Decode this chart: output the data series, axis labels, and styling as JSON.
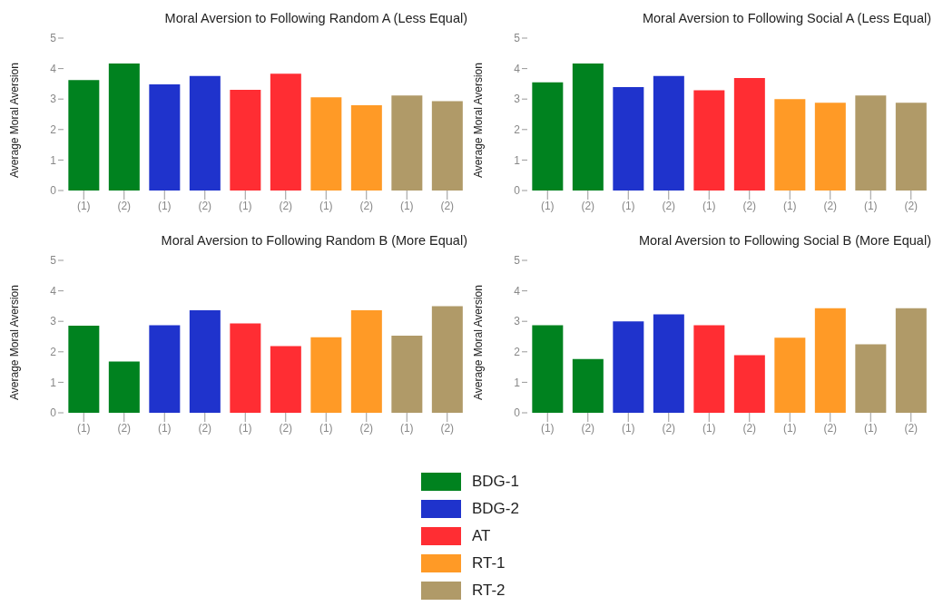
{
  "chart_data": [
    {
      "type": "bar",
      "title": "Moral Aversion to Following Random A (Less Equal)",
      "ylabel": "Average Moral Aversion",
      "categories": [
        "(1)",
        "(2)",
        "(1)",
        "(2)",
        "(1)",
        "(2)",
        "(1)",
        "(2)",
        "(1)",
        "(2)"
      ],
      "series": [
        {
          "name": "BDG-1",
          "color": "#00821f",
          "values": [
            3.62,
            4.17,
            null,
            null,
            null,
            null,
            null,
            null,
            null,
            null
          ]
        },
        {
          "name": "BDG-2",
          "color": "#1f33cc",
          "values": [
            null,
            null,
            3.48,
            3.76,
            null,
            null,
            null,
            null,
            null,
            null
          ]
        },
        {
          "name": "AT",
          "color": "#ff2d33",
          "values": [
            null,
            null,
            null,
            null,
            3.3,
            3.83,
            null,
            null,
            null,
            null
          ]
        },
        {
          "name": "RT-1",
          "color": "#ff9a26",
          "values": [
            null,
            null,
            null,
            null,
            null,
            null,
            3.06,
            2.8,
            null,
            null
          ]
        },
        {
          "name": "RT-2",
          "color": "#b09a68",
          "values": [
            null,
            null,
            null,
            null,
            null,
            null,
            null,
            null,
            3.12,
            2.93
          ]
        }
      ],
      "ylim": [
        0,
        5
      ],
      "yticks": [
        0,
        1,
        2,
        3,
        4,
        5
      ],
      "grid": false,
      "legend": "bottom"
    },
    {
      "type": "bar",
      "title": "Moral Aversion to Following Social A (Less Equal)",
      "ylabel": "Average Moral Aversion",
      "categories": [
        "(1)",
        "(2)",
        "(1)",
        "(2)",
        "(1)",
        "(2)",
        "(1)",
        "(2)",
        "(1)",
        "(2)"
      ],
      "series": [
        {
          "color": "#00821f",
          "values": [
            3.55,
            4.17,
            null,
            null,
            null,
            null,
            null,
            null,
            null,
            null
          ]
        },
        {
          "color": "#1f33cc",
          "values": [
            null,
            null,
            3.39,
            3.76,
            null,
            null,
            null,
            null,
            null,
            null
          ]
        },
        {
          "color": "#ff2d33",
          "values": [
            null,
            null,
            null,
            null,
            3.29,
            3.69,
            null,
            null,
            null,
            null
          ]
        },
        {
          "color": "#ff9a26",
          "values": [
            null,
            null,
            null,
            null,
            null,
            null,
            3.0,
            2.88,
            null,
            null
          ]
        },
        {
          "color": "#b09a68",
          "values": [
            null,
            null,
            null,
            null,
            null,
            null,
            null,
            null,
            3.12,
            2.88
          ]
        }
      ],
      "ylim": [
        0,
        5
      ],
      "yticks": [
        0,
        1,
        2,
        3,
        4,
        5
      ],
      "grid": false
    },
    {
      "type": "bar",
      "title": "Moral Aversion to Following Random B (More Equal)",
      "ylabel": "Average Moral Aversion",
      "categories": [
        "(1)",
        "(2)",
        "(1)",
        "(2)",
        "(1)",
        "(2)",
        "(1)",
        "(2)",
        "(1)",
        "(2)"
      ],
      "series": [
        {
          "color": "#00821f",
          "values": [
            2.86,
            1.68,
            null,
            null,
            null,
            null,
            null,
            null,
            null,
            null
          ]
        },
        {
          "color": "#1f33cc",
          "values": [
            null,
            null,
            2.87,
            3.36,
            null,
            null,
            null,
            null,
            null,
            null
          ]
        },
        {
          "color": "#ff2d33",
          "values": [
            null,
            null,
            null,
            null,
            2.93,
            2.19,
            null,
            null,
            null,
            null
          ]
        },
        {
          "color": "#ff9a26",
          "values": [
            null,
            null,
            null,
            null,
            null,
            null,
            2.48,
            3.36,
            null,
            null
          ]
        },
        {
          "color": "#b09a68",
          "values": [
            null,
            null,
            null,
            null,
            null,
            null,
            null,
            null,
            2.53,
            3.5
          ]
        }
      ],
      "ylim": [
        0,
        5
      ],
      "yticks": [
        0,
        1,
        2,
        3,
        4,
        5
      ],
      "grid": false
    },
    {
      "type": "bar",
      "title": "Moral Aversion to Following Social B (More Equal)",
      "ylabel": "Average Moral Aversion",
      "categories": [
        "(1)",
        "(2)",
        "(1)",
        "(2)",
        "(1)",
        "(2)",
        "(1)",
        "(2)",
        "(1)",
        "(2)"
      ],
      "series": [
        {
          "color": "#00821f",
          "values": [
            2.87,
            1.76,
            null,
            null,
            null,
            null,
            null,
            null,
            null,
            null
          ]
        },
        {
          "color": "#1f33cc",
          "values": [
            null,
            null,
            3.0,
            3.23,
            null,
            null,
            null,
            null,
            null,
            null
          ]
        },
        {
          "color": "#ff2d33",
          "values": [
            null,
            null,
            null,
            null,
            2.87,
            1.89,
            null,
            null,
            null,
            null
          ]
        },
        {
          "color": "#ff9a26",
          "values": [
            null,
            null,
            null,
            null,
            null,
            null,
            2.46,
            3.43,
            null,
            null
          ]
        },
        {
          "color": "#b09a68",
          "values": [
            null,
            null,
            null,
            null,
            null,
            null,
            null,
            null,
            2.25,
            3.43
          ]
        }
      ],
      "ylim": [
        0,
        5
      ],
      "yticks": [
        0,
        1,
        2,
        3,
        4,
        5
      ],
      "grid": false
    }
  ]
}
